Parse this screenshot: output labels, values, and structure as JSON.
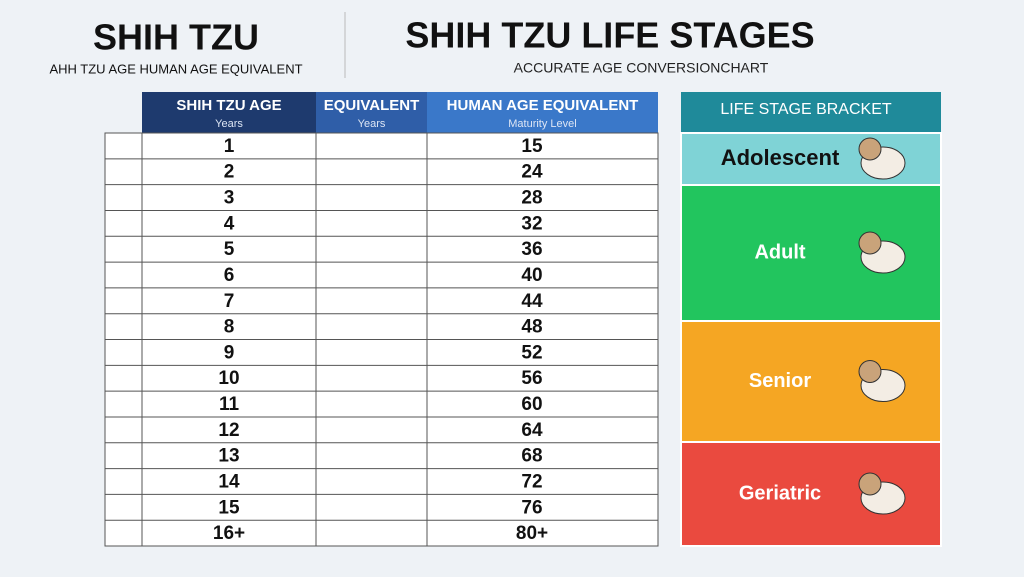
{
  "header": {
    "left_title": "SHIH TZU",
    "left_subtitle": "AHH TZU AGE HUMAN AGE EQUIVALENT",
    "title": "SHIH TZU LIFE STAGES",
    "subtitle": "ACCURATE AGE CONVERSIONCHART"
  },
  "table": {
    "columns": [
      {
        "title": "SHIH TZU AGE",
        "sub": "Years"
      },
      {
        "title": "EQUIVALENT",
        "sub": "Years"
      },
      {
        "title": "HUMAN AGE EQUIVALENT",
        "sub": "Maturity Level"
      }
    ],
    "rows": [
      {
        "age": 1,
        "human": 15
      },
      {
        "age": 2,
        "human": 24
      },
      {
        "age": 3,
        "human": 28
      },
      {
        "age": 4,
        "human": 32
      },
      {
        "age": 5,
        "human": 36
      },
      {
        "age": 6,
        "human": 40
      },
      {
        "age": 7,
        "human": 44
      },
      {
        "age": 8,
        "human": 48
      },
      {
        "age": 9,
        "human": 52
      },
      {
        "age": 10,
        "human": 56
      },
      {
        "age": 11,
        "human": 60
      },
      {
        "age": 12,
        "human": 64
      },
      {
        "age": 13,
        "human": 68
      },
      {
        "age": 14,
        "human": 72
      },
      {
        "age": 15,
        "human": 76
      },
      {
        "age": "16+",
        "human": "80+"
      }
    ]
  },
  "stages": {
    "title": "LIFE STAGE BRACKET",
    "items": [
      {
        "label": "Adolescent",
        "color": "#7fd3d6"
      },
      {
        "label": "Adult",
        "color": "#22c55e"
      },
      {
        "label": "Senior",
        "color": "#f5a623"
      },
      {
        "label": "Geriatric",
        "color": "#ea4a3f"
      }
    ]
  }
}
